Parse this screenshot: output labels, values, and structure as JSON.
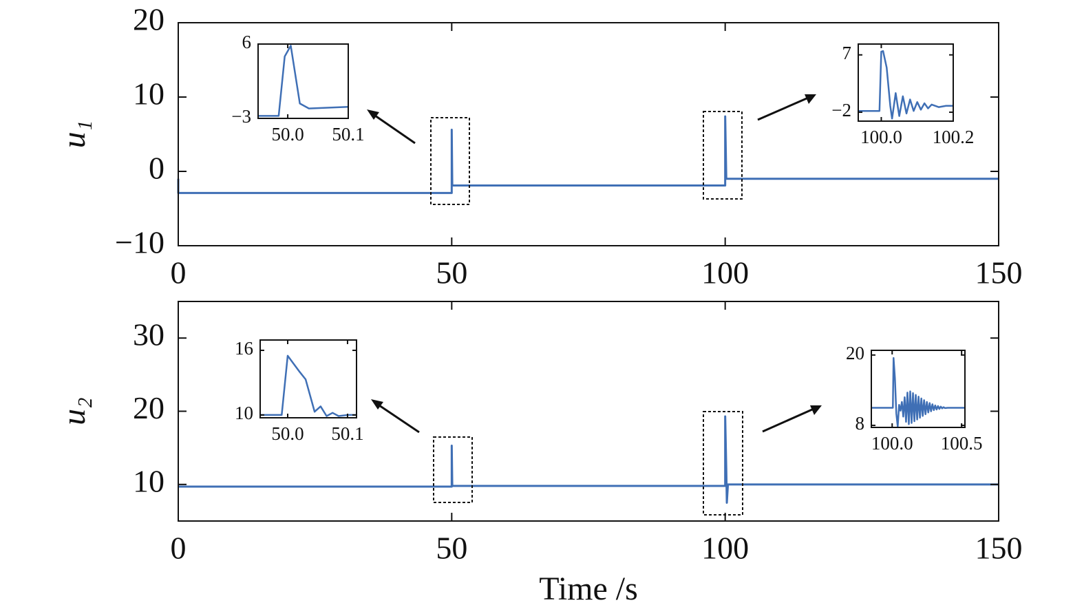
{
  "chart_data": [
    {
      "type": "line",
      "ylabel": "u₁",
      "color": "#3f6fb5",
      "x": [
        0,
        0,
        50,
        50,
        50.1,
        100,
        100,
        100.2,
        150
      ],
      "values": [
        -1,
        -2.9,
        -2.9,
        5.6,
        -1.9,
        -1.9,
        7.4,
        -1.0,
        -1.0
      ],
      "xlim": [
        0,
        150
      ],
      "ylim": [
        -10,
        20
      ],
      "xticks": [
        0,
        50,
        100,
        150
      ],
      "yticks": [
        {
          "value": -10,
          "label": "−10"
        },
        0,
        10,
        20
      ]
    },
    {
      "type": "line",
      "color": "#3f6fb5",
      "x": [
        49.95,
        49.985,
        49.995,
        50.005,
        50.02,
        50.035,
        50.1
      ],
      "values": [
        -2.7,
        -2.7,
        4.5,
        5.8,
        -1.2,
        -1.8,
        -1.6
      ],
      "xlim": [
        49.951,
        50.1
      ],
      "ylim": [
        -3,
        6
      ],
      "xticks": [
        {
          "value": 50,
          "label": "50.0"
        },
        50.1
      ],
      "yticks": [
        {
          "value": -3,
          "label": "−3"
        },
        6
      ]
    },
    {
      "type": "line",
      "color": "#3f6fb5",
      "x": [
        99.936,
        99.995,
        100,
        100.005,
        100.015,
        100.025,
        100.03,
        100.04,
        100.05,
        100.06,
        100.07,
        100.08,
        100.09,
        100.1,
        100.11,
        100.12,
        100.13,
        100.14,
        100.16,
        100.18,
        100.2
      ],
      "values": [
        -1.8,
        -1.8,
        7.5,
        7.6,
        5,
        -1,
        -3,
        1,
        -2.6,
        0.5,
        -2.2,
        0,
        -1.8,
        -0.4,
        -1.6,
        -0.6,
        -1.4,
        -0.8,
        -1.2,
        -1.0,
        -1.0
      ],
      "xlim": [
        99.936,
        100.2
      ],
      "ylim": [
        -3.4,
        8.7
      ],
      "xticks": [
        {
          "value": 100,
          "label": "100.0"
        },
        100.2
      ],
      "yticks": [
        {
          "value": -2,
          "label": "−2"
        },
        7
      ]
    },
    {
      "type": "line",
      "ylabel": "u₂",
      "xlabel": "Time /s",
      "color": "#3f6fb5",
      "x": [
        0,
        50,
        50,
        50.1,
        100,
        100,
        100.2,
        100.3,
        100.5,
        150
      ],
      "values": [
        9.7,
        9.7,
        15.3,
        9.8,
        9.8,
        19.3,
        12,
        7.5,
        10,
        10
      ],
      "xlim": [
        0,
        150
      ],
      "ylim": [
        5,
        35
      ],
      "xticks": [
        0,
        50,
        100,
        150
      ],
      "yticks": [
        10,
        20,
        30
      ]
    },
    {
      "type": "line",
      "color": "#3f6fb5",
      "x": [
        49.954,
        49.99,
        50,
        50.02,
        50.03,
        50.045,
        50.055,
        50.065,
        50.075,
        50.085,
        50.1,
        50.115
      ],
      "values": [
        10,
        10,
        15.5,
        14,
        13.3,
        10.3,
        10.8,
        9.9,
        10.2,
        9.9,
        10,
        10
      ],
      "xlim": [
        49.954,
        50.115
      ],
      "ylim": [
        9.74,
        16.96
      ],
      "xticks": [
        {
          "value": 50,
          "label": "50.0"
        },
        50.1
      ],
      "yticks": [
        10,
        16
      ]
    },
    {
      "type": "line",
      "color": "#3f6fb5",
      "x": [
        99.85,
        100.005,
        100.01,
        100.02,
        100.03,
        100.04,
        100.05,
        100.06,
        100.07,
        100.08,
        100.09,
        100.1,
        100.11,
        100.12,
        100.13,
        100.14,
        100.15,
        100.16,
        100.17,
        100.18,
        100.19,
        100.2,
        100.21,
        100.22,
        100.23,
        100.24,
        100.25,
        100.26,
        100.27,
        100.28,
        100.29,
        100.3,
        100.31,
        100.32,
        100.33,
        100.34,
        100.35,
        100.36,
        100.37,
        100.38,
        100.4,
        100.524
      ],
      "values": [
        11,
        11,
        19.5,
        16,
        10,
        7.8,
        11.5,
        10.5,
        12.0,
        9.5,
        12.8,
        8.6,
        13.6,
        8.2,
        13.8,
        8.4,
        13.5,
        8.7,
        13.2,
        9.0,
        12.9,
        9.3,
        12.6,
        9.6,
        12.3,
        9.9,
        12.0,
        10.2,
        11.8,
        10.4,
        11.6,
        10.6,
        11.4,
        10.7,
        11.3,
        10.8,
        11.2,
        10.9,
        11.1,
        10.95,
        11.0,
        11.0
      ],
      "xlim": [
        99.85,
        100.524
      ],
      "ylim": [
        7.65,
        20.8
      ],
      "xticks": [
        {
          "value": 100,
          "label": "100.0"
        },
        100.5
      ],
      "yticks": [
        8,
        20
      ]
    }
  ]
}
